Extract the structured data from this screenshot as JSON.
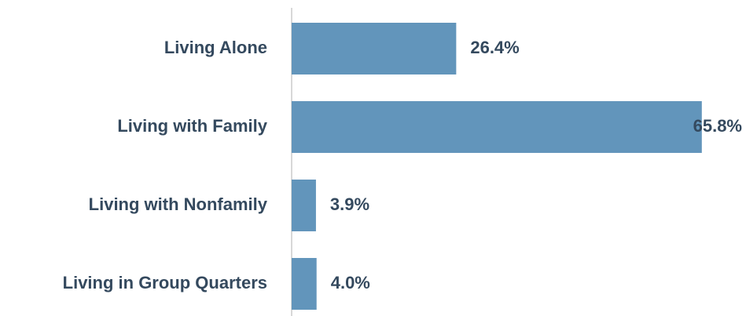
{
  "chart_data": {
    "type": "bar",
    "orientation": "horizontal",
    "categories": [
      "Living Alone",
      "Living with Family",
      "Living with Nonfamily",
      "Living in Group Quarters"
    ],
    "values": [
      26.4,
      65.8,
      3.9,
      4.0
    ],
    "value_labels": [
      "26.4%",
      "65.8%",
      "3.9%",
      "4.0%"
    ],
    "color": "#6295bb"
  }
}
